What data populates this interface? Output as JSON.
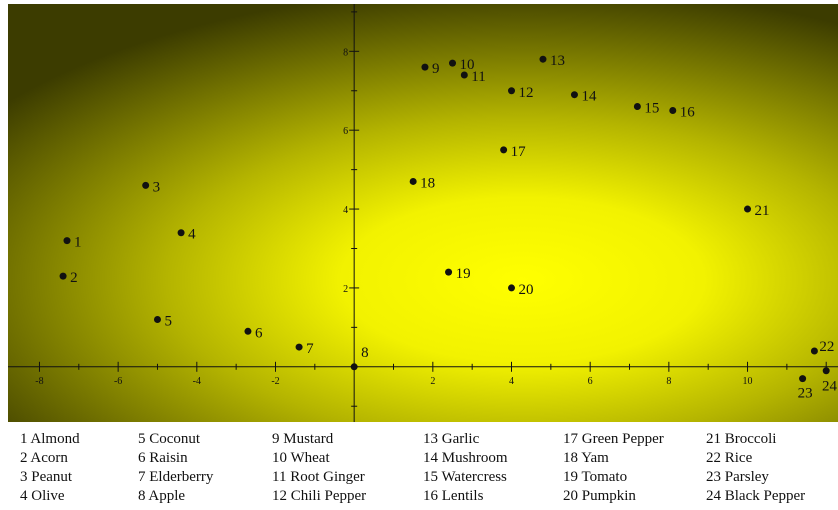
{
  "chart_data": {
    "type": "scatter",
    "title": "",
    "xlabel": "",
    "ylabel": "",
    "xlim": [
      -8.8,
      12.3
    ],
    "ylim": [
      -1.4,
      9.2
    ],
    "x_ticks": [
      -8,
      -6,
      -4,
      -2,
      2,
      4,
      6,
      8,
      10
    ],
    "x_tick_labels": [
      "-8",
      "-6",
      "-4",
      "-2",
      "2",
      "4",
      "6",
      "8",
      "10"
    ],
    "y_ticks": [
      2,
      4,
      6,
      8
    ],
    "y_tick_labels": [
      "2",
      "4",
      "6",
      "8"
    ],
    "background": "yellow density gradient peaking near x=4, y=2.5",
    "colors": {
      "peak": "#ffff00",
      "mid": "#b4b400",
      "edge": "#3c3c00",
      "marker": "#111111"
    },
    "points": [
      {
        "id": "1",
        "name": "Almond",
        "x": -7.3,
        "y": 3.2
      },
      {
        "id": "2",
        "name": "Acorn",
        "x": -7.4,
        "y": 2.3
      },
      {
        "id": "3",
        "name": "Peanut",
        "x": -5.3,
        "y": 4.6
      },
      {
        "id": "4",
        "name": "Olive",
        "x": -4.4,
        "y": 3.4
      },
      {
        "id": "5",
        "name": "Coconut",
        "x": -5.0,
        "y": 1.2
      },
      {
        "id": "6",
        "name": "Raisin",
        "x": -2.7,
        "y": 0.9
      },
      {
        "id": "7",
        "name": "Elderberry",
        "x": -1.4,
        "y": 0.5
      },
      {
        "id": "8",
        "name": "Apple",
        "x": 0.0,
        "y": 0.0
      },
      {
        "id": "9",
        "name": "Mustard",
        "x": 1.8,
        "y": 7.6
      },
      {
        "id": "10",
        "name": "Wheat",
        "x": 2.5,
        "y": 7.7
      },
      {
        "id": "11",
        "name": "Root Ginger",
        "x": 2.8,
        "y": 7.4
      },
      {
        "id": "12",
        "name": "Chili Pepper",
        "x": 4.0,
        "y": 7.0
      },
      {
        "id": "13",
        "name": "Garlic",
        "x": 4.8,
        "y": 7.8
      },
      {
        "id": "14",
        "name": "Mushroom",
        "x": 5.6,
        "y": 6.9
      },
      {
        "id": "15",
        "name": "Watercress",
        "x": 7.2,
        "y": 6.6
      },
      {
        "id": "16",
        "name": "Lentils",
        "x": 8.1,
        "y": 6.5
      },
      {
        "id": "17",
        "name": "Green Pepper",
        "x": 3.8,
        "y": 5.5
      },
      {
        "id": "18",
        "name": "Yam",
        "x": 1.5,
        "y": 4.7
      },
      {
        "id": "19",
        "name": "Tomato",
        "x": 2.4,
        "y": 2.4
      },
      {
        "id": "20",
        "name": "Pumpkin",
        "x": 4.0,
        "y": 2.0
      },
      {
        "id": "21",
        "name": "Broccoli",
        "x": 10.0,
        "y": 4.0
      },
      {
        "id": "22",
        "name": "Rice",
        "x": 11.7,
        "y": 0.4
      },
      {
        "id": "23",
        "name": "Parsley",
        "x": 11.4,
        "y": -0.3
      },
      {
        "id": "24",
        "name": "Black Pepper",
        "x": 12.0,
        "y": -0.1
      }
    ]
  },
  "legend": {
    "columns": [
      [
        "1 Almond",
        "2 Acorn",
        "3 Peanut",
        "4 Olive"
      ],
      [
        "5 Coconut",
        "6 Raisin",
        "7 Elderberry",
        "8 Apple"
      ],
      [
        "9 Mustard",
        "10 Wheat",
        "11 Root Ginger",
        "12 Chili Pepper"
      ],
      [
        "13 Garlic",
        "14 Mushroom",
        "15 Watercress",
        "16 Lentils"
      ],
      [
        "17 Green Pepper",
        "18 Yam",
        "19 Tomato",
        "20 Pumpkin"
      ],
      [
        "21 Broccoli",
        "22 Rice",
        "23 Parsley",
        "24 Black Pepper"
      ]
    ]
  }
}
